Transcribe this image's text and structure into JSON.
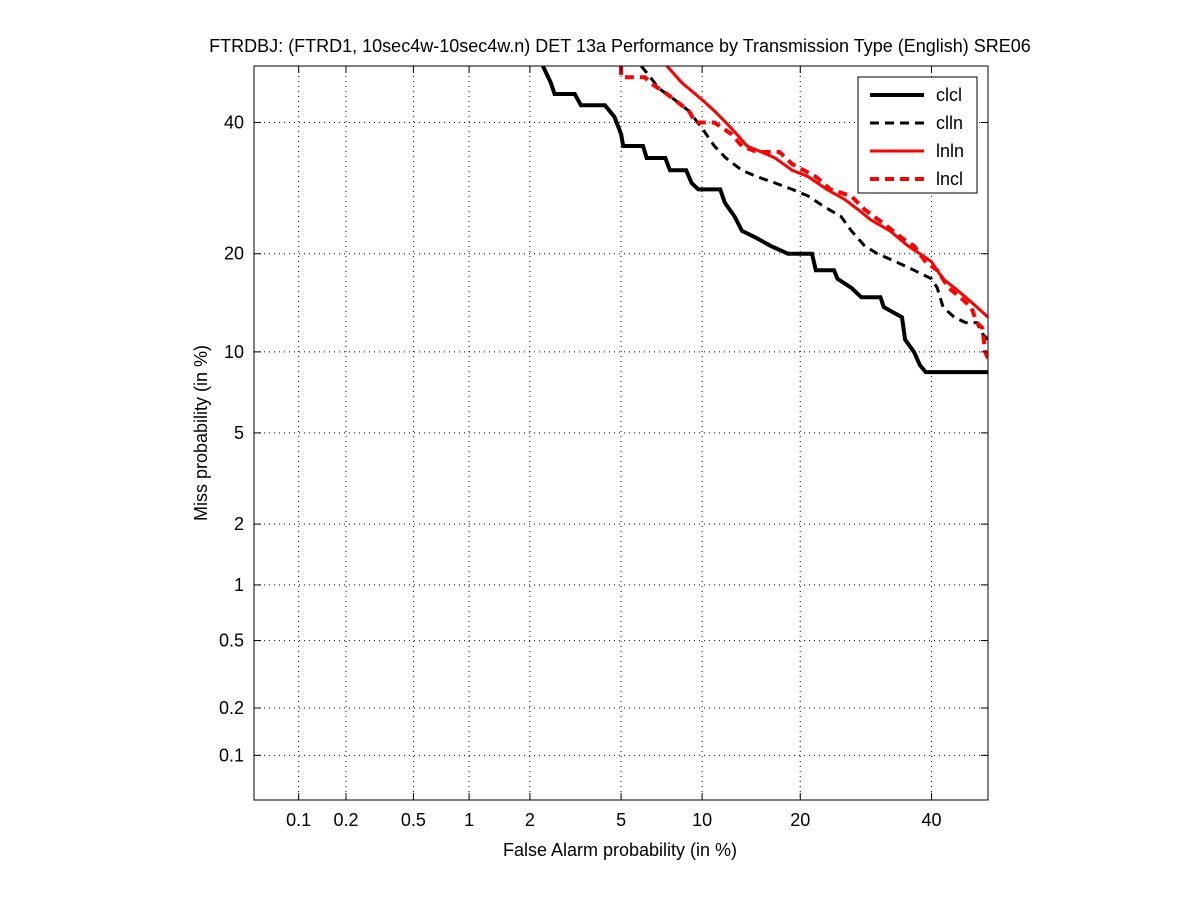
{
  "chart_data": {
    "type": "line",
    "title": "FTRDBJ: (FTRD1, 10sec4w-10sec4w.n) DET 13a Performance by Transmission Type (English) SRE06",
    "xlabel": "False Alarm probability (in %)",
    "ylabel": "Miss probability (in %)",
    "x_scale": "normal-deviate",
    "y_scale": "normal-deviate",
    "xlim": [
      0.05,
      50
    ],
    "ylim": [
      0.05,
      50
    ],
    "x_ticks": [
      0.1,
      0.2,
      0.5,
      1,
      2,
      5,
      10,
      20,
      40
    ],
    "x_tick_labels": [
      "0.1",
      "0.2",
      "0.5",
      "1",
      "2",
      "5",
      "10",
      "20",
      "40"
    ],
    "y_ticks": [
      0.1,
      0.2,
      0.5,
      1,
      2,
      5,
      10,
      20,
      40
    ],
    "y_tick_labels": [
      "0.1",
      "0.2",
      "0.5",
      "1",
      "2",
      "5",
      "10",
      "20",
      "40"
    ],
    "grid": true,
    "legend": "top-right",
    "series": [
      {
        "name": "clcl",
        "color": "#000000",
        "dash": "solid",
        "width": 4,
        "points": [
          [
            2.3,
            50
          ],
          [
            2.5,
            47
          ],
          [
            2.6,
            45
          ],
          [
            3.2,
            45
          ],
          [
            3.4,
            43
          ],
          [
            4.3,
            43
          ],
          [
            4.7,
            41
          ],
          [
            5.0,
            38
          ],
          [
            5.1,
            36
          ],
          [
            6.1,
            36
          ],
          [
            6.3,
            34
          ],
          [
            7.4,
            34
          ],
          [
            7.7,
            32
          ],
          [
            8.8,
            32
          ],
          [
            9.2,
            30
          ],
          [
            9.7,
            29
          ],
          [
            11.5,
            29
          ],
          [
            11.9,
            27
          ],
          [
            12.8,
            25
          ],
          [
            13.5,
            23
          ],
          [
            15.0,
            22
          ],
          [
            16.5,
            21
          ],
          [
            18.5,
            20
          ],
          [
            21.5,
            20
          ],
          [
            22.0,
            18
          ],
          [
            24.5,
            18
          ],
          [
            25.0,
            17
          ],
          [
            27.0,
            16
          ],
          [
            28.5,
            15
          ],
          [
            31.5,
            15
          ],
          [
            32.0,
            14
          ],
          [
            35.0,
            13
          ],
          [
            35.5,
            11
          ],
          [
            37.0,
            10
          ],
          [
            38.0,
            9
          ],
          [
            39.0,
            8.5
          ],
          [
            50,
            8.5
          ]
        ]
      },
      {
        "name": "clln",
        "color": "#000000",
        "dash": "dashed",
        "width": 3,
        "points": [
          [
            6.0,
            50
          ],
          [
            6.5,
            48
          ],
          [
            7.0,
            46
          ],
          [
            8.0,
            44
          ],
          [
            9.0,
            42
          ],
          [
            10.0,
            39
          ],
          [
            11.0,
            36
          ],
          [
            12.0,
            34
          ],
          [
            13.5,
            32
          ],
          [
            15.0,
            31
          ],
          [
            17.0,
            30
          ],
          [
            19.0,
            29
          ],
          [
            21.0,
            28
          ],
          [
            23.0,
            26.5
          ],
          [
            25.5,
            25
          ],
          [
            27.0,
            23
          ],
          [
            29.0,
            21
          ],
          [
            31.0,
            20
          ],
          [
            34.0,
            19
          ],
          [
            37.0,
            18
          ],
          [
            40.0,
            17
          ],
          [
            41.0,
            16
          ],
          [
            42.0,
            14
          ],
          [
            44.0,
            13
          ],
          [
            46.0,
            12.5
          ],
          [
            48.0,
            12.5
          ],
          [
            49.0,
            11.5
          ],
          [
            50,
            11
          ]
        ]
      },
      {
        "name": "lnln",
        "color": "#ff0000",
        "dash": "solid",
        "width": 3,
        "points": [
          [
            7.5,
            50
          ],
          [
            8.5,
            47
          ],
          [
            10.0,
            44
          ],
          [
            11.0,
            42
          ],
          [
            12.0,
            40
          ],
          [
            13.0,
            38
          ],
          [
            14.0,
            36
          ],
          [
            15.5,
            35
          ],
          [
            17.0,
            34
          ],
          [
            19.0,
            32
          ],
          [
            21.0,
            31
          ],
          [
            23.5,
            29
          ],
          [
            26.0,
            27.5
          ],
          [
            28.0,
            26
          ],
          [
            30.0,
            24.5
          ],
          [
            33.0,
            23
          ],
          [
            36.0,
            21
          ],
          [
            38.0,
            20
          ],
          [
            40.0,
            19
          ],
          [
            42.0,
            17
          ],
          [
            44.0,
            16
          ],
          [
            46.0,
            15
          ],
          [
            48.0,
            14
          ],
          [
            49.0,
            13.5
          ],
          [
            50,
            13
          ]
        ]
      },
      {
        "name": "lncl",
        "color": "#ff0000",
        "dash": "dashed",
        "width": 4,
        "points": [
          [
            5.0,
            50
          ],
          [
            5.0,
            48
          ],
          [
            6.2,
            48
          ],
          [
            6.5,
            47
          ],
          [
            7.5,
            45
          ],
          [
            8.0,
            44
          ],
          [
            9.0,
            42
          ],
          [
            9.5,
            40
          ],
          [
            11.0,
            40
          ],
          [
            12.5,
            38
          ],
          [
            13.5,
            36
          ],
          [
            15.0,
            35
          ],
          [
            17.5,
            35
          ],
          [
            19.0,
            33
          ],
          [
            22.0,
            31
          ],
          [
            24.0,
            29
          ],
          [
            27.0,
            28
          ],
          [
            29.0,
            26
          ],
          [
            32.0,
            24
          ],
          [
            35.0,
            22
          ],
          [
            37.0,
            21
          ],
          [
            39.0,
            19
          ],
          [
            41.0,
            18
          ],
          [
            43.0,
            16
          ],
          [
            45.0,
            15
          ],
          [
            47.0,
            14
          ],
          [
            48.0,
            12.5
          ],
          [
            49.0,
            12
          ],
          [
            49.5,
            10
          ],
          [
            50,
            9.5
          ]
        ]
      }
    ]
  }
}
